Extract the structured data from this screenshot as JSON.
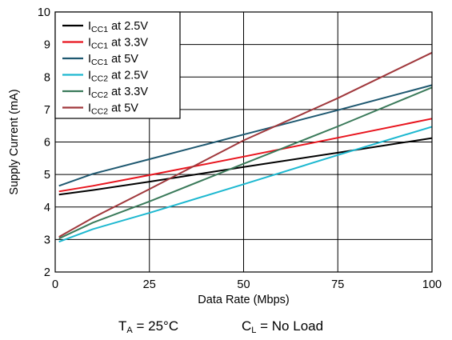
{
  "chart_data": {
    "type": "line",
    "title": "",
    "xlabel": "Data Rate (Mbps)",
    "ylabel": "Supply Current (mA)",
    "xlim": [
      0,
      100
    ],
    "ylim": [
      2,
      10
    ],
    "xticks": [
      0,
      25,
      50,
      75,
      100
    ],
    "yticks": [
      2,
      3,
      4,
      5,
      6,
      7,
      8,
      9,
      10
    ],
    "grid": true,
    "legend_position": "top-left",
    "series": [
      {
        "name": "ICC1 at 2.5V",
        "name_main": "I",
        "name_sub": "CC1",
        "name_rest": " at 2.5V",
        "color": "#000000",
        "x": [
          1,
          10,
          25,
          50,
          75,
          100
        ],
        "y": [
          4.38,
          4.52,
          4.78,
          5.23,
          5.67,
          6.12
        ]
      },
      {
        "name": "ICC1 at 3.3V",
        "name_main": "I",
        "name_sub": "CC1",
        "name_rest": " at 3.3V",
        "color": "#e8141d",
        "x": [
          1,
          10,
          25,
          50,
          75,
          100
        ],
        "y": [
          4.48,
          4.65,
          4.98,
          5.55,
          6.13,
          6.72
        ]
      },
      {
        "name": "ICC1 at 5V",
        "name_main": "I",
        "name_sub": "CC1",
        "name_rest": " at 5V",
        "color": "#1e5870",
        "x": [
          1,
          10,
          25,
          50,
          75,
          100
        ],
        "y": [
          4.65,
          5.02,
          5.47,
          6.23,
          6.98,
          7.75
        ]
      },
      {
        "name": "ICC2 at 2.5V",
        "name_main": "I",
        "name_sub": "CC2",
        "name_rest": " at 2.5V",
        "color": "#1db8d0",
        "x": [
          1,
          10,
          25,
          50,
          75,
          100
        ],
        "y": [
          2.93,
          3.32,
          3.82,
          4.7,
          5.6,
          6.47
        ]
      },
      {
        "name": "ICC2 at 3.3V",
        "name_main": "I",
        "name_sub": "CC2",
        "name_rest": " at 3.3V",
        "color": "#3a7a5a",
        "x": [
          1,
          10,
          25,
          50,
          75,
          100
        ],
        "y": [
          3.03,
          3.52,
          4.17,
          5.33,
          6.48,
          7.68
        ]
      },
      {
        "name": "ICC2 at 5V",
        "name_main": "I",
        "name_sub": "CC2",
        "name_rest": " at 5V",
        "color": "#a0383c",
        "x": [
          1,
          10,
          25,
          50,
          75,
          100
        ],
        "y": [
          3.08,
          3.67,
          4.55,
          6.05,
          7.35,
          8.75
        ]
      }
    ]
  },
  "conditions": {
    "ta_main": "T",
    "ta_sub": "A",
    "ta_rest": " = 25°C",
    "cl_main": "C",
    "cl_sub": "L",
    "cl_rest": " = No Load"
  }
}
